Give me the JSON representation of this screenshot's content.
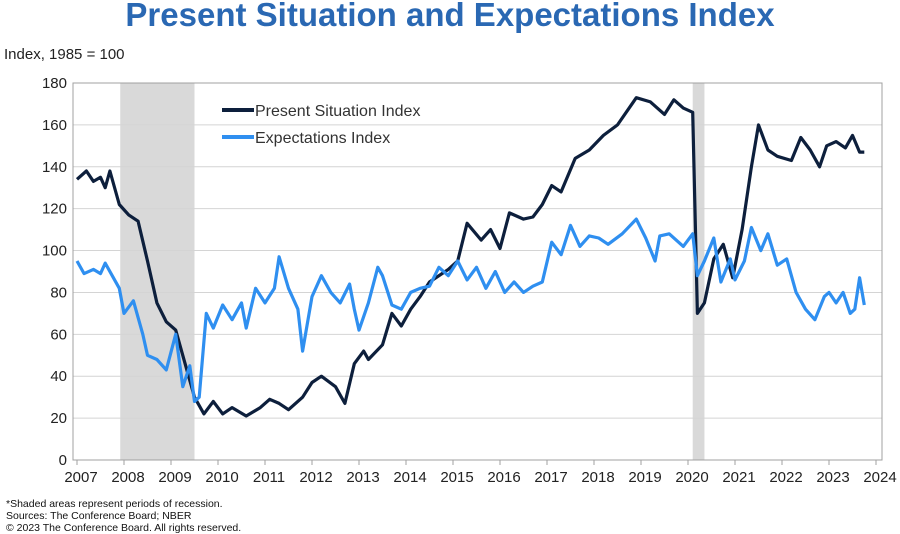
{
  "chart_data": {
    "type": "line",
    "title": "Present Situation and Expectations Index",
    "ylabel": "Index, 1985 = 100",
    "xlabel": "",
    "xlim": [
      2007,
      2024
    ],
    "ylim": [
      0,
      180
    ],
    "yticks": [
      0,
      20,
      40,
      60,
      80,
      100,
      120,
      140,
      160,
      180
    ],
    "xticks": [
      2007,
      2008,
      2009,
      2010,
      2011,
      2012,
      2013,
      2014,
      2015,
      2016,
      2017,
      2018,
      2019,
      2020,
      2021,
      2022,
      2023,
      2024
    ],
    "grid": true,
    "legend": "top-center",
    "recessions": [
      [
        2007.92,
        2009.5
      ],
      [
        2020.1,
        2020.35
      ]
    ],
    "series": [
      {
        "name": "Present Situation Index",
        "color": "#0d1f3c",
        "x": [
          2007.0,
          2007.2,
          2007.35,
          2007.5,
          2007.6,
          2007.7,
          2007.9,
          2008.1,
          2008.3,
          2008.5,
          2008.7,
          2008.9,
          2009.1,
          2009.3,
          2009.5,
          2009.7,
          2009.9,
          2010.1,
          2010.3,
          2010.6,
          2010.9,
          2011.1,
          2011.3,
          2011.5,
          2011.8,
          2012.0,
          2012.2,
          2012.5,
          2012.7,
          2012.9,
          2013.1,
          2013.2,
          2013.5,
          2013.7,
          2013.9,
          2014.1,
          2014.3,
          2014.5,
          2014.9,
          2015.1,
          2015.3,
          2015.6,
          2015.8,
          2016.0,
          2016.2,
          2016.5,
          2016.7,
          2016.9,
          2017.1,
          2017.3,
          2017.6,
          2017.9,
          2018.2,
          2018.5,
          2018.9,
          2019.2,
          2019.5,
          2019.7,
          2019.9,
          2020.1,
          2020.2,
          2020.35,
          2020.55,
          2020.75,
          2020.95,
          2021.15,
          2021.35,
          2021.5,
          2021.7,
          2021.9,
          2022.2,
          2022.4,
          2022.6,
          2022.8,
          2022.95,
          2023.15,
          2023.35,
          2023.5,
          2023.65,
          2023.75
        ],
        "y": [
          134,
          138,
          133,
          135,
          130,
          138,
          122,
          117,
          114,
          95,
          75,
          66,
          62,
          46,
          30,
          22,
          28,
          22,
          25,
          21,
          25,
          29,
          27,
          24,
          30,
          37,
          40,
          35,
          27,
          46,
          52,
          48,
          55,
          70,
          64,
          72,
          78,
          85,
          91,
          95,
          113,
          105,
          110,
          101,
          118,
          115,
          116,
          122,
          131,
          128,
          144,
          148,
          155,
          160,
          173,
          171,
          165,
          172,
          168,
          166,
          70,
          75,
          96,
          103,
          87,
          110,
          140,
          160,
          148,
          145,
          143,
          154,
          148,
          140,
          150,
          152,
          149,
          155,
          147,
          147
        ]
      },
      {
        "name": "Expectations Index",
        "color": "#2f8ff0",
        "x": [
          2007.0,
          2007.15,
          2007.35,
          2007.5,
          2007.6,
          2007.9,
          2008.0,
          2008.2,
          2008.4,
          2008.5,
          2008.7,
          2008.9,
          2009.1,
          2009.25,
          2009.4,
          2009.5,
          2009.6,
          2009.75,
          2009.9,
          2010.1,
          2010.3,
          2010.5,
          2010.6,
          2010.8,
          2011.0,
          2011.2,
          2011.3,
          2011.5,
          2011.7,
          2011.8,
          2012.0,
          2012.2,
          2012.4,
          2012.6,
          2012.8,
          2012.9,
          2013.0,
          2013.2,
          2013.4,
          2013.5,
          2013.7,
          2013.9,
          2014.1,
          2014.3,
          2014.5,
          2014.7,
          2014.9,
          2015.1,
          2015.3,
          2015.5,
          2015.7,
          2015.9,
          2016.1,
          2016.3,
          2016.5,
          2016.7,
          2016.9,
          2017.1,
          2017.3,
          2017.5,
          2017.7,
          2017.9,
          2018.1,
          2018.3,
          2018.6,
          2018.9,
          2019.1,
          2019.3,
          2019.4,
          2019.6,
          2019.9,
          2020.1,
          2020.2,
          2020.35,
          2020.55,
          2020.7,
          2020.9,
          2021.0,
          2021.2,
          2021.35,
          2021.55,
          2021.7,
          2021.9,
          2022.1,
          2022.3,
          2022.5,
          2022.7,
          2022.9,
          2023.0,
          2023.15,
          2023.3,
          2023.45,
          2023.55,
          2023.65,
          2023.75
        ],
        "y": [
          95,
          89,
          91,
          89,
          94,
          82,
          70,
          76,
          60,
          50,
          48,
          43,
          60,
          35,
          45,
          28,
          30,
          70,
          63,
          74,
          67,
          75,
          63,
          82,
          75,
          82,
          97,
          82,
          72,
          52,
          78,
          88,
          80,
          75,
          84,
          72,
          62,
          75,
          92,
          88,
          74,
          72,
          80,
          82,
          83,
          92,
          88,
          95,
          86,
          92,
          82,
          90,
          80,
          85,
          80,
          83,
          85,
          104,
          98,
          112,
          102,
          107,
          106,
          103,
          108,
          115,
          106,
          95,
          107,
          108,
          102,
          108,
          88,
          95,
          106,
          85,
          96,
          86,
          95,
          111,
          100,
          108,
          93,
          96,
          80,
          72,
          67,
          78,
          80,
          75,
          80,
          70,
          72,
          87,
          74
        ]
      }
    ],
    "notes": [
      "*Shaded areas represent periods of recession.",
      "Sources: The Conference Board; NBER",
      "© 2023 The Conference Board. All rights reserved."
    ]
  }
}
